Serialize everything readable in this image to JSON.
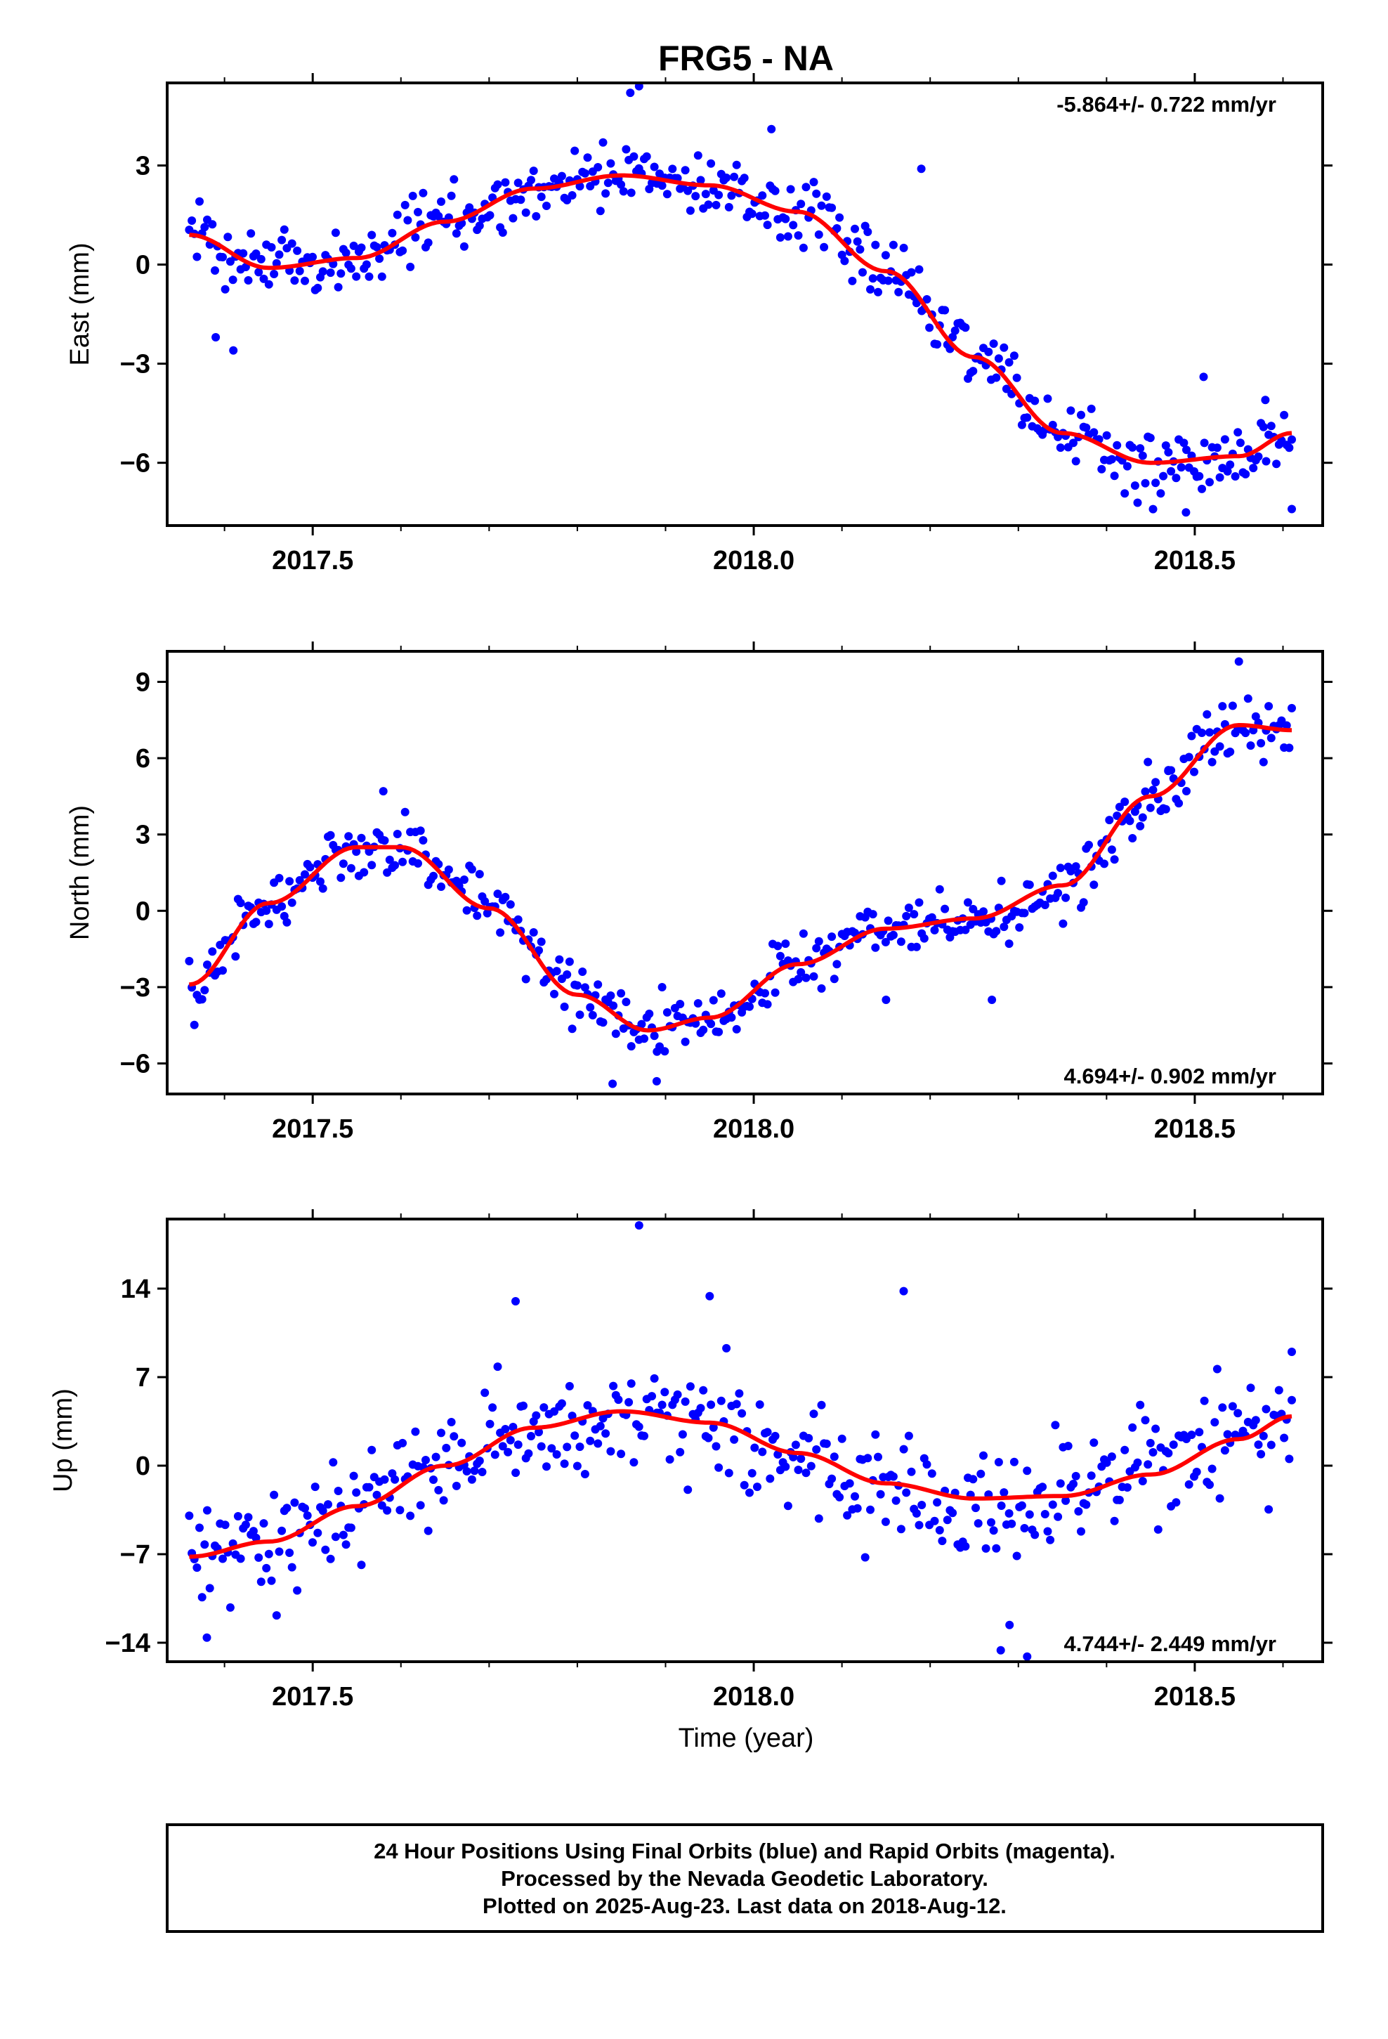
{
  "title": "FRG5 - NA",
  "xlabel": "Time (year)",
  "caption": [
    "24 Hour Positions Using Final Orbits (blue) and Rapid Orbits (magenta).",
    "Processed by the Nevada Geodetic Laboratory.",
    "Plotted on 2025-Aug-23. Last data on 2018-Aug-12."
  ],
  "colors": {
    "points": "#0000ff",
    "fit": "#ff0000",
    "frame": "#000000"
  },
  "chart_data": [
    {
      "type": "scatter",
      "ylabel": "East (mm)",
      "rate": "-5.864+/- 0.722 mm/yr",
      "rate_position": "top-right",
      "xlim": [
        2017.335,
        2018.645
      ],
      "ylim": [
        -7.9,
        5.5
      ],
      "xticks": [
        "2017.5",
        "2018.0",
        "2018.5"
      ],
      "yticks": [
        "3",
        "0",
        "−3",
        "−6"
      ],
      "ytick_values": [
        3,
        0,
        -3,
        -6
      ],
      "x_start": 2017.36,
      "x_end": 2018.61,
      "fit_x": [
        2017.36,
        2017.45,
        2017.55,
        2017.65,
        2017.75,
        2017.85,
        2017.95,
        2018.05,
        2018.15,
        2018.25,
        2018.35,
        2018.45,
        2018.55,
        2018.61
      ],
      "fit_y": [
        0.9,
        -0.1,
        0.2,
        1.3,
        2.3,
        2.7,
        2.4,
        1.6,
        -0.2,
        -2.8,
        -5.1,
        -6.0,
        -5.8,
        -5.1
      ],
      "scatter_sd": 0.75,
      "outliers": [
        [
          2017.87,
          5.4
        ],
        [
          2017.86,
          5.2
        ],
        [
          2018.02,
          4.1
        ],
        [
          2018.19,
          2.9
        ],
        [
          2017.39,
          -2.2
        ],
        [
          2017.41,
          -2.6
        ],
        [
          2018.51,
          -3.4
        ],
        [
          2018.58,
          -4.1
        ],
        [
          2018.49,
          -7.5
        ],
        [
          2018.61,
          -7.4
        ]
      ]
    },
    {
      "type": "scatter",
      "ylabel": "North (mm)",
      "rate": "4.694+/- 0.902 mm/yr",
      "rate_position": "bottom-right",
      "xlim": [
        2017.335,
        2018.645
      ],
      "ylim": [
        -7.2,
        10.2
      ],
      "xticks": [
        "2017.5",
        "2018.0",
        "2018.5"
      ],
      "yticks": [
        "9",
        "6",
        "3",
        "0",
        "−3",
        "−6"
      ],
      "ytick_values": [
        9,
        6,
        3,
        0,
        -3,
        -6
      ],
      "x_start": 2017.36,
      "x_end": 2018.61,
      "fit_x": [
        2017.36,
        2017.45,
        2017.55,
        2017.6,
        2017.7,
        2017.8,
        2017.88,
        2017.95,
        2018.05,
        2018.15,
        2018.25,
        2018.35,
        2018.45,
        2018.55,
        2018.61
      ],
      "fit_y": [
        -2.9,
        0.3,
        2.5,
        2.5,
        0.1,
        -3.3,
        -4.7,
        -4.2,
        -2.1,
        -0.7,
        -0.3,
        1.0,
        4.5,
        7.3,
        7.1
      ],
      "scatter_sd": 0.85,
      "outliers": [
        [
          2017.58,
          4.7
        ],
        [
          2017.84,
          -6.8
        ],
        [
          2017.89,
          -6.7
        ],
        [
          2018.15,
          -3.5
        ],
        [
          2018.27,
          -3.5
        ],
        [
          2018.55,
          9.8
        ],
        [
          2018.47,
          5.5
        ]
      ]
    },
    {
      "type": "scatter",
      "ylabel": "Up (mm)",
      "rate": "4.744+/- 2.449 mm/yr",
      "rate_position": "bottom-right",
      "xlim": [
        2017.335,
        2018.645
      ],
      "ylim": [
        -15.5,
        19.5
      ],
      "xticks": [
        "2017.5",
        "2018.0",
        "2018.5"
      ],
      "yticks": [
        "14",
        "7",
        "0",
        "−7",
        "−14"
      ],
      "ytick_values": [
        14,
        7,
        0,
        -7,
        -14
      ],
      "x_start": 2017.36,
      "x_end": 2018.61,
      "fit_x": [
        2017.36,
        2017.45,
        2017.55,
        2017.65,
        2017.75,
        2017.85,
        2017.95,
        2018.05,
        2018.15,
        2018.25,
        2018.35,
        2018.45,
        2018.55,
        2018.61
      ],
      "fit_y": [
        -7.2,
        -6.0,
        -3.2,
        0.0,
        3.0,
        4.3,
        3.4,
        1.0,
        -1.4,
        -2.6,
        -2.4,
        -0.7,
        2.1,
        3.9
      ],
      "scatter_sd": 3.2,
      "outliers": [
        [
          2017.87,
          19.0
        ],
        [
          2018.17,
          13.8
        ],
        [
          2017.73,
          13.0
        ],
        [
          2017.95,
          13.4
        ],
        [
          2018.28,
          -14.6
        ],
        [
          2018.31,
          -15.1
        ],
        [
          2017.38,
          -13.6
        ],
        [
          2018.29,
          -12.6
        ],
        [
          2018.61,
          9.0
        ]
      ]
    }
  ]
}
